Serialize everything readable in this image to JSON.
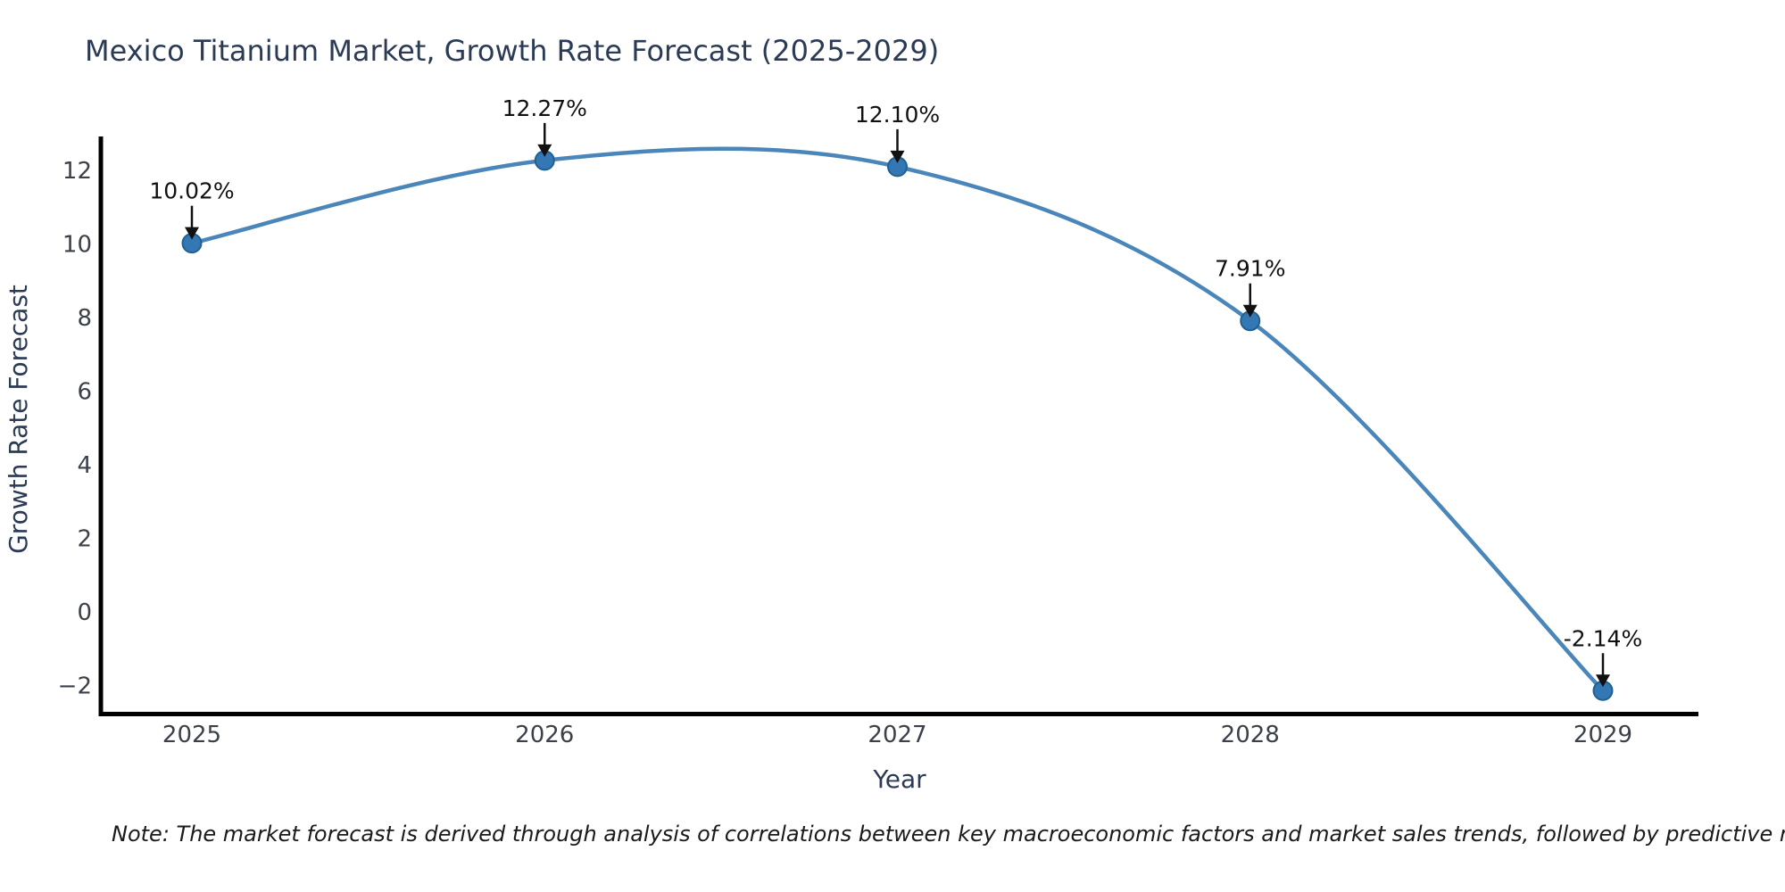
{
  "chart_data": {
    "type": "line",
    "title": "Mexico Titanium Market, Growth Rate Forecast (2025-2029)",
    "xlabel": "Year",
    "ylabel": "Growth Rate Forecast",
    "line_shape": "spline",
    "grid": false,
    "legend": "none",
    "x": [
      2025,
      2026,
      2027,
      2028,
      2029
    ],
    "x_tick_labels": [
      "2025",
      "2026",
      "2027",
      "2028",
      "2029"
    ],
    "values": [
      10.02,
      12.27,
      12.1,
      7.91,
      -2.14
    ],
    "point_labels": [
      "10.02%",
      "12.27%",
      "12.10%",
      "7.91%",
      "-2.14%"
    ],
    "y_ticks": [
      {
        "value": 12,
        "label": "12"
      },
      {
        "value": 10,
        "label": "10"
      },
      {
        "value": 8,
        "label": "8"
      },
      {
        "value": 6,
        "label": "6"
      },
      {
        "value": 4,
        "label": "4"
      },
      {
        "value": 2,
        "label": "2"
      },
      {
        "value": 0,
        "label": "0"
      },
      {
        "value": -2,
        "label": "−2"
      }
    ],
    "ylim": [
      -2.8,
      12.9
    ],
    "colors": {
      "line": "#4a86ba",
      "marker_fill": "#3377b4",
      "marker_edge": "#21618f",
      "axis": "#000000",
      "title": "#2b3a55",
      "tick": "#3b4049",
      "annotation": "#111111"
    }
  },
  "note": "Note: The market forecast is derived through analysis of correlations between key macroeconomic factors and market sales trends, followed by predictive modeling to project future sales"
}
